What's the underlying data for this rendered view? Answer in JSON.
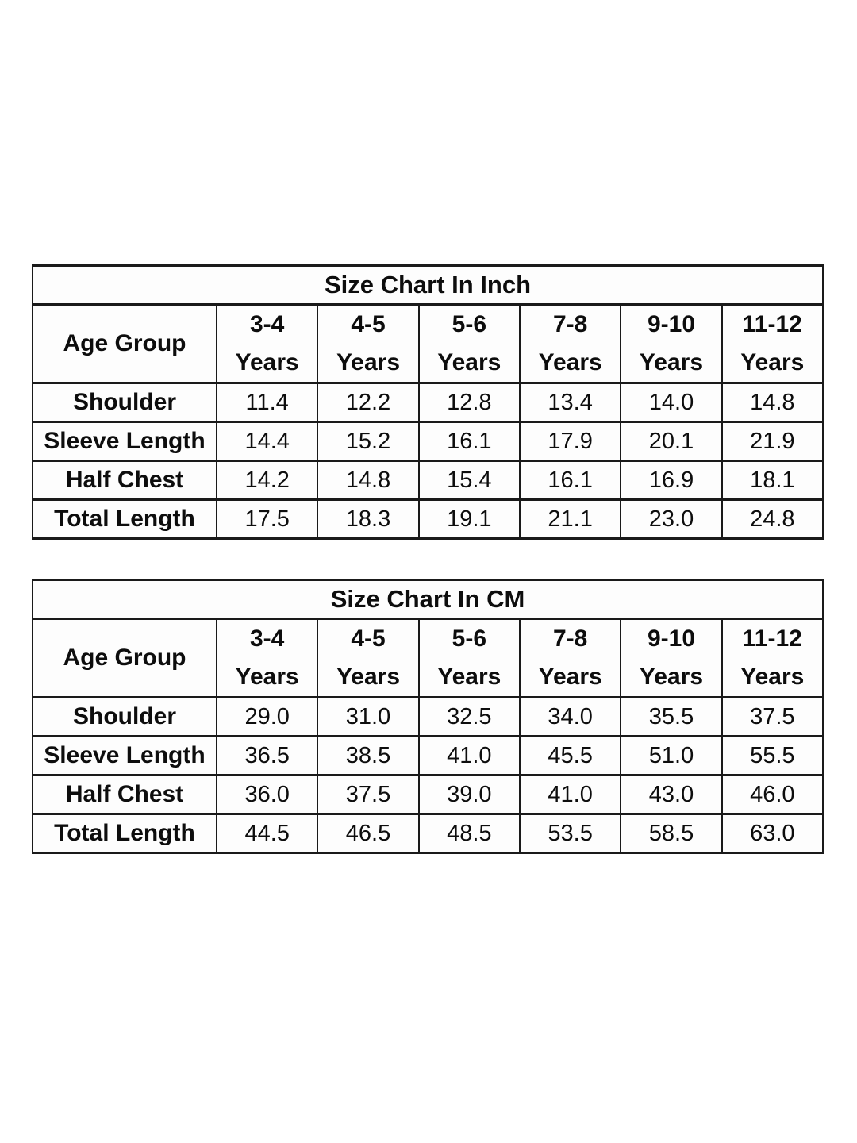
{
  "colors": {
    "background": "#ffffff",
    "border": "#1a1a1a",
    "text": "#0d0d0d"
  },
  "chart_data": [
    {
      "type": "table",
      "title": "Size Chart In Inch",
      "corner_header": "Age Group",
      "column_headers": [
        {
          "range": "3-4",
          "unit": "Years"
        },
        {
          "range": "4-5",
          "unit": "Years"
        },
        {
          "range": "5-6",
          "unit": "Years"
        },
        {
          "range": "7-8",
          "unit": "Years"
        },
        {
          "range": "9-10",
          "unit": "Years"
        },
        {
          "range": "11-12",
          "unit": "Years"
        }
      ],
      "rows": [
        {
          "label": "Shoulder",
          "values": [
            "11.4",
            "12.2",
            "12.8",
            "13.4",
            "14.0",
            "14.8"
          ]
        },
        {
          "label": "Sleeve Length",
          "values": [
            "14.4",
            "15.2",
            "16.1",
            "17.9",
            "20.1",
            "21.9"
          ]
        },
        {
          "label": "Half Chest",
          "values": [
            "14.2",
            "14.8",
            "15.4",
            "16.1",
            "16.9",
            "18.1"
          ]
        },
        {
          "label": "Total Length",
          "values": [
            "17.5",
            "18.3",
            "19.1",
            "21.1",
            "23.0",
            "24.8"
          ]
        }
      ]
    },
    {
      "type": "table",
      "title": "Size Chart In CM",
      "corner_header": "Age Group",
      "column_headers": [
        {
          "range": "3-4",
          "unit": "Years"
        },
        {
          "range": "4-5",
          "unit": "Years"
        },
        {
          "range": "5-6",
          "unit": "Years"
        },
        {
          "range": "7-8",
          "unit": "Years"
        },
        {
          "range": "9-10",
          "unit": "Years"
        },
        {
          "range": "11-12",
          "unit": "Years"
        }
      ],
      "rows": [
        {
          "label": "Shoulder",
          "values": [
            "29.0",
            "31.0",
            "32.5",
            "34.0",
            "35.5",
            "37.5"
          ]
        },
        {
          "label": "Sleeve Length",
          "values": [
            "36.5",
            "38.5",
            "41.0",
            "45.5",
            "51.0",
            "55.5"
          ]
        },
        {
          "label": "Half Chest",
          "values": [
            "36.0",
            "37.5",
            "39.0",
            "41.0",
            "43.0",
            "46.0"
          ]
        },
        {
          "label": "Total Length",
          "values": [
            "44.5",
            "46.5",
            "48.5",
            "53.5",
            "58.5",
            "63.0"
          ]
        }
      ]
    }
  ]
}
